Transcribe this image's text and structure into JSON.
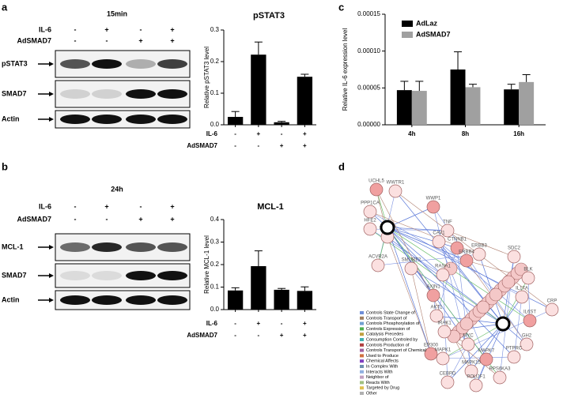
{
  "panels": {
    "a": "a",
    "b": "b",
    "c": "c",
    "d": "d"
  },
  "blots": [
    {
      "time": "15min",
      "conditions": [
        {
          "name": "IL-6",
          "signs": [
            "-",
            "+",
            "-",
            "+"
          ]
        },
        {
          "name": "AdSMAD7",
          "signs": [
            "-",
            "-",
            "+",
            "+"
          ]
        }
      ],
      "bands": [
        "pSTAT3",
        "SMAD7",
        "Actin"
      ]
    },
    {
      "time": "24h",
      "conditions": [
        {
          "name": "IL-6",
          "signs": [
            "-",
            "+",
            "-",
            "+"
          ]
        },
        {
          "name": "AdSMAD7",
          "signs": [
            "-",
            "-",
            "+",
            "+"
          ]
        }
      ],
      "bands": [
        "MCL-1",
        "SMAD7",
        "Actin"
      ]
    }
  ],
  "chart_data": [
    {
      "type": "bar",
      "title": "pSTAT3",
      "y_label": "Relative pSTAT3 level",
      "color": "#000000",
      "values": [
        0.025,
        0.222,
        0.008,
        0.152
      ],
      "errors": [
        0.017,
        0.04,
        0.003,
        0.008
      ],
      "conditions": [
        {
          "name": "IL-6",
          "values": [
            "-",
            "+",
            "-",
            "+"
          ]
        },
        {
          "name": "AdSMAD7",
          "values": [
            "-",
            "-",
            "+",
            "+"
          ]
        }
      ],
      "ylim": [
        0,
        0.3
      ],
      "yticks": [
        {
          "value": 0,
          "label": "0.0"
        },
        0.1,
        0.2,
        0.3
      ]
    },
    {
      "type": "bar",
      "title": "MCL-1",
      "y_label": "Relative MCL-1 level",
      "color": "#000000",
      "values": [
        0.085,
        0.193,
        0.088,
        0.083
      ],
      "errors": [
        0.012,
        0.068,
        0.006,
        0.018
      ],
      "conditions": [
        {
          "name": "IL-6",
          "values": [
            "-",
            "+",
            "-",
            "+"
          ]
        },
        {
          "name": "AdSMAD7",
          "values": [
            "-",
            "-",
            "+",
            "+"
          ]
        }
      ],
      "ylim": [
        0,
        0.4
      ],
      "yticks": [
        {
          "value": 0,
          "label": "0.0"
        },
        0.1,
        0.2,
        0.3,
        0.4
      ]
    },
    {
      "type": "grouped_bar",
      "y_label": "Relative IL-6 expression level",
      "categories": [
        "4h",
        "8h",
        "16h"
      ],
      "series": [
        {
          "name": "AdLaz",
          "color": "#000000",
          "values": [
            4.7e-05,
            7.5e-05,
            4.8e-05
          ],
          "errors": [
            1.2e-05,
            2.4e-05,
            7e-06
          ]
        },
        {
          "name": "AdSMAD7",
          "color": "#a0a0a0",
          "values": [
            4.6e-05,
            5.1e-05,
            5.8e-05
          ],
          "errors": [
            1.3e-05,
            4e-06,
            1e-05
          ]
        }
      ],
      "ylim": [
        0,
        0.00015
      ],
      "yticks": [
        {
          "value": 0,
          "label": "0.00000"
        },
        {
          "value": 5e-05,
          "label": "0.00005"
        },
        {
          "value": 0.0001,
          "label": "0.00010"
        },
        {
          "value": 0.00015,
          "label": "0.00015"
        }
      ],
      "legend": "upper left"
    }
  ],
  "network": {
    "nodes": [
      "UCHL5",
      "WWTR1",
      "PPP1CA",
      "SMAD7",
      "WWP1",
      "HFE2",
      "TNF",
      "CAV1",
      "CTNNB1",
      "ERBB3",
      "ACVR2A",
      "SMURF2",
      "ERBB4",
      "SDC2",
      "RASA1",
      "BLK",
      "AXIN1",
      "IL17A",
      "CRP",
      "AKT1",
      "IL6ST",
      "IRAK1",
      "MYC",
      "GH2",
      "EP300",
      "MAPK1",
      "PTPRC",
      "MAPK15",
      "MAPK7",
      "CEBPD",
      "RPS6KA3",
      "POU2F1"
    ],
    "legend": [
      {
        "name": "Controls State Change of",
        "color": "#6f8fd8"
      },
      {
        "name": "Controls Transport of",
        "color": "#a08060"
      },
      {
        "name": "Controls Phosphorylation of",
        "color": "#70a0d0"
      },
      {
        "name": "Controls Expression of",
        "color": "#50b050"
      },
      {
        "name": "Catalysis Precedes",
        "color": "#c0a040"
      },
      {
        "name": "Consumption Controled by",
        "color": "#40b0b0"
      },
      {
        "name": "Controls Production of",
        "color": "#b04040"
      },
      {
        "name": "Controls Transport of Chemical",
        "color": "#a060a0"
      },
      {
        "name": "Used to Produce",
        "color": "#d07040"
      },
      {
        "name": "Chemical Affects",
        "color": "#8040c0"
      },
      {
        "name": "In Complex With",
        "color": "#7090b0"
      },
      {
        "name": "Interacts With",
        "color": "#90b0e0"
      },
      {
        "name": "Neighbor of",
        "color": "#c0a0c0"
      },
      {
        "name": "Reacts With",
        "color": "#a0c080"
      },
      {
        "name": "Targeted by Drug",
        "color": "#e0c050"
      },
      {
        "name": "Other",
        "color": "#b0b0b0"
      }
    ]
  }
}
